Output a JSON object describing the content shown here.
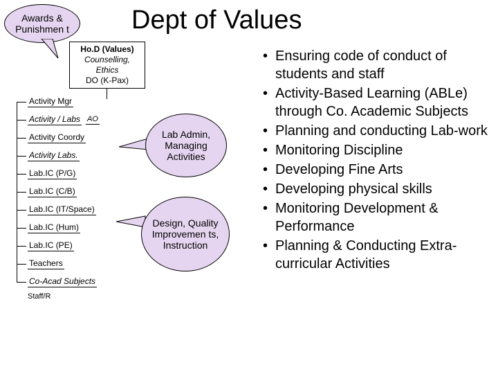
{
  "title": "Dept of Values",
  "callouts": {
    "awards": {
      "text": "Awards & Punishmen t",
      "bg": "#e6d5f0"
    },
    "labadmin": {
      "text": "Lab Admin, Managing Activities",
      "bg": "#e6d5f0"
    },
    "design": {
      "text": "Design, Quality Improvemen ts, Instruction",
      "bg": "#e6d5f0"
    }
  },
  "orgchart": {
    "head": {
      "l1": "Ho.D (Values)",
      "l2": "Counselling, Ethics",
      "l3": "DO (K-Pax)"
    },
    "rows": [
      {
        "label": "Activity Mgr",
        "sub": ""
      },
      {
        "label": "Activity / Labs",
        "sub": "AO",
        "italic": true
      },
      {
        "label": "Activity Coordy",
        "sub": ""
      },
      {
        "label": "Activity Labs.",
        "sub": "",
        "italic": true
      },
      {
        "label": "Lab.IC (P/G)",
        "sub": ""
      },
      {
        "label": "Lab.IC (C/B)",
        "sub": ""
      },
      {
        "label": "Lab.IC (IT/Space)",
        "sub": ""
      },
      {
        "label": "Lab.IC (Hum)",
        "sub": ""
      },
      {
        "label": "Lab.IC (PE)",
        "sub": ""
      },
      {
        "label": "Teachers",
        "sub": ""
      },
      {
        "label": "Co-Acad Subjects",
        "sub": "",
        "italic": true
      }
    ],
    "staff": "Staff/R"
  },
  "bullets": [
    "Ensuring code of conduct of students and staff",
    "Activity-Based Learning (ABLe) through Co. Academic Subjects",
    "Planning and conducting Lab-work",
    "Monitoring Discipline",
    "Developing Fine Arts",
    "Developing physical skills",
    "Monitoring Development & Performance",
    "Planning & Conducting Extra-curricular Activities"
  ],
  "colors": {
    "callout_bg": "#e6d5f0",
    "text": "#000000",
    "bg": "#ffffff"
  }
}
